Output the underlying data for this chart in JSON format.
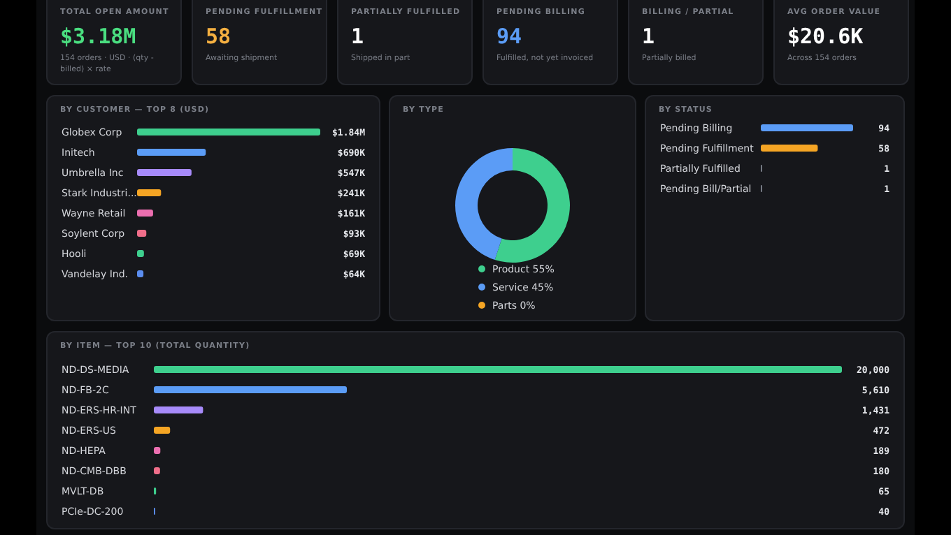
{
  "chart_data": [
    {
      "type": "other",
      "title": "TOTAL OPEN AMOUNT",
      "annotations": [
        "$3.18M",
        "154 orders · USD · (qty - billed) × rate"
      ],
      "color": "#4ade80"
    },
    {
      "type": "other",
      "title": "PENDING FULFILLMENT",
      "annotations": [
        "58",
        "Awaiting shipment"
      ],
      "color": "#f5b041"
    },
    {
      "type": "other",
      "title": "PARTIALLY FULFILLED",
      "annotations": [
        "1",
        "Shipped in part"
      ],
      "color": "#ffffff"
    },
    {
      "type": "other",
      "title": "PENDING BILLING",
      "annotations": [
        "94",
        "Fulfilled, not yet invoiced"
      ],
      "color": "#5b9cf6"
    },
    {
      "type": "other",
      "title": "BILLING / PARTIAL",
      "annotations": [
        "1",
        "Partially billed"
      ],
      "color": "#ffffff"
    },
    {
      "type": "other",
      "title": "AVG ORDER VALUE",
      "annotations": [
        "$20.6K",
        "Across 154 orders"
      ],
      "color": "#ffffff"
    },
    {
      "type": "bar",
      "orientation": "horizontal",
      "title": "BY CUSTOMER — TOP 8 (USD)",
      "categories": [
        "Globex Corp",
        "Initech",
        "Umbrella Inc",
        "Stark Industri...",
        "Wayne Retail",
        "Soylent Corp",
        "Hooli",
        "Vandelay Ind."
      ],
      "values": [
        1840000,
        690000,
        547000,
        241000,
        161000,
        93000,
        69000,
        64000
      ],
      "value_labels": [
        "$1.84M",
        "$690K",
        "$547K",
        "$241K",
        "$161K",
        "$93K",
        "$69K",
        "$64K"
      ],
      "colors": [
        "#3ecf8e",
        "#5b9cf6",
        "#a78bfa",
        "#f5a524",
        "#ec6fb0",
        "#f06e8a",
        "#3ecf8e",
        "#5b8def"
      ]
    },
    {
      "type": "donut",
      "title": "BY TYPE",
      "categories": [
        "Product",
        "Service",
        "Parts"
      ],
      "values": [
        55,
        45,
        0
      ],
      "value_labels": [
        "55%",
        "45%",
        "0%"
      ],
      "colors": [
        "#3ecf8e",
        "#5b9cf6",
        "#f5a524"
      ],
      "legend": "bottom"
    },
    {
      "type": "bar",
      "orientation": "horizontal",
      "title": "BY STATUS",
      "categories": [
        "Pending Billing",
        "Pending Fulfillment",
        "Partially Fulfilled",
        "Pending Bill/Partial"
      ],
      "values": [
        94,
        58,
        1,
        1
      ],
      "data_labels": true,
      "colors": [
        "#5b9cf6",
        "#f5a524",
        "#9ca3af",
        "#9ca3af"
      ]
    },
    {
      "type": "bar",
      "orientation": "horizontal",
      "title": "BY ITEM — TOP 10 (TOTAL QUANTITY)",
      "categories": [
        "ND-DS-MEDIA",
        "ND-FB-2C",
        "ND-ERS-HR-INT",
        "ND-ERS-US",
        "ND-HEPA",
        "ND-CMB-DBB",
        "MVLT-DB",
        "PCIe-DC-200"
      ],
      "values": [
        20000,
        5610,
        1431,
        472,
        189,
        180,
        65,
        40
      ],
      "value_labels": [
        "20,000",
        "5,610",
        "1,431",
        "472",
        "189",
        "180",
        "65",
        "40"
      ],
      "colors": [
        "#3ecf8e",
        "#5b9cf6",
        "#a78bfa",
        "#f5a524",
        "#ec6fb0",
        "#f06e8a",
        "#3ecf8e",
        "#5b8def"
      ]
    }
  ]
}
